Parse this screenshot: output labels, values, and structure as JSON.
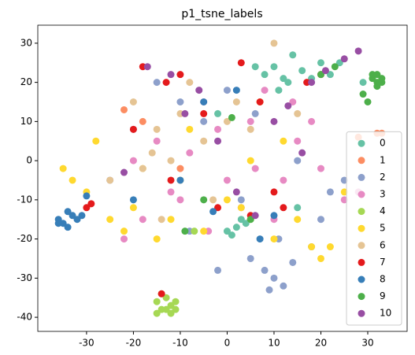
{
  "chart_data": {
    "type": "scatter",
    "title": "p1_tsne_labels",
    "xlim": [
      -40.4,
      38.4
    ],
    "ylim": [
      -43.6,
      34.6
    ],
    "xticks": [
      -30,
      -20,
      -10,
      0,
      10,
      20,
      30
    ],
    "yticks": [
      -40,
      -30,
      -20,
      -10,
      0,
      10,
      20,
      30
    ],
    "legend": "lower right",
    "series": [
      {
        "name": "0",
        "color": "#66c2a5",
        "x": [
          8,
          10,
          12,
          14,
          16,
          18,
          20,
          11,
          13,
          22,
          0,
          2,
          4,
          1,
          3,
          -2,
          6,
          15,
          24,
          29
        ],
        "values": [
          22,
          24,
          21,
          27,
          23,
          21,
          25,
          18,
          20,
          22,
          -18,
          -17,
          -16,
          -19,
          -15,
          12,
          24,
          -12,
          25,
          20
        ]
      },
      {
        "name": "1",
        "color": "#fc8d62",
        "x": [
          -22,
          -10,
          28,
          32,
          33,
          -18
        ],
        "values": [
          13,
          -2,
          6,
          7,
          7,
          10
        ]
      },
      {
        "name": "2",
        "color": "#8da0cb",
        "x": [
          -15,
          -10,
          -5,
          0,
          5,
          8,
          10,
          12,
          14,
          -20,
          -25,
          -2,
          18,
          20,
          22,
          25,
          3,
          9,
          11,
          6,
          -8,
          15
        ],
        "values": [
          20,
          15,
          10,
          18,
          -25,
          -28,
          -30,
          -32,
          -26,
          8,
          -5,
          -28,
          -22,
          -15,
          -8,
          -5,
          -10,
          -33,
          -20,
          12,
          -18,
          0
        ]
      },
      {
        "name": "3",
        "color": "#e78ac3",
        "x": [
          -20,
          -15,
          -10,
          -5,
          0,
          5,
          10,
          15,
          20,
          -18,
          -12,
          -8,
          -2,
          3,
          8,
          12,
          18,
          25,
          -22,
          6,
          14,
          -4,
          28
        ],
        "values": [
          0,
          5,
          -10,
          15,
          -5,
          10,
          -15,
          5,
          -2,
          -15,
          -8,
          2,
          8,
          -12,
          18,
          -5,
          10,
          -10,
          -20,
          -2,
          15,
          -18,
          -8
        ]
      },
      {
        "name": "4",
        "color": "#a6d854",
        "x": [
          -15,
          -14,
          -13,
          -12,
          -11,
          -14,
          -12,
          -13,
          -15,
          -11,
          -7,
          5
        ],
        "values": [
          -36,
          -38,
          -35,
          -37,
          -36,
          -34,
          -39,
          -38,
          -39,
          -38,
          -18,
          -15
        ]
      },
      {
        "name": "5",
        "color": "#ffd92f",
        "x": [
          -35,
          -30,
          -25,
          -20,
          -15,
          -10,
          -5,
          0,
          5,
          10,
          15,
          20,
          -28,
          -22,
          -18,
          -8,
          3,
          12,
          18,
          22,
          -33,
          -12,
          7,
          25
        ],
        "values": [
          -2,
          -8,
          -15,
          -12,
          -20,
          -5,
          -18,
          -10,
          0,
          -20,
          -15,
          -25,
          5,
          -18,
          -2,
          8,
          -12,
          5,
          -22,
          -22,
          -5,
          -15,
          15,
          -8
        ]
      },
      {
        "name": "6",
        "color": "#e5c494",
        "x": [
          -20,
          -15,
          -10,
          -5,
          0,
          -18,
          -12,
          -8,
          5,
          10,
          -25,
          -3,
          2,
          15,
          -14,
          -16
        ],
        "values": [
          15,
          8,
          12,
          5,
          10,
          -2,
          0,
          20,
          8,
          30,
          -5,
          -10,
          15,
          12,
          -15,
          2
        ]
      },
      {
        "name": "7",
        "color": "#e41a1c",
        "x": [
          -18,
          -13,
          -10,
          -5,
          -2,
          5,
          7,
          -20,
          -12,
          -30,
          -29,
          12,
          17,
          20,
          -14,
          3,
          10
        ],
        "values": [
          24,
          20,
          22,
          12,
          -12,
          -14,
          15,
          8,
          -5,
          -12,
          -11,
          -12,
          20,
          22,
          -34,
          25,
          -8
        ]
      },
      {
        "name": "8",
        "color": "#377eb8",
        "x": [
          -36,
          -35,
          -34,
          -33,
          -32,
          -36,
          -34,
          -31,
          -5,
          -3,
          2,
          7,
          -10,
          -20,
          10,
          -30
        ],
        "values": [
          -15,
          -16,
          -17,
          -14,
          -15,
          -16,
          -13,
          -14,
          15,
          -13,
          18,
          -20,
          -5,
          -10,
          -14,
          -9
        ]
      },
      {
        "name": "9",
        "color": "#4daf4a",
        "x": [
          31,
          32,
          33,
          32,
          31,
          33,
          32,
          30,
          29,
          -5,
          5,
          1,
          -9,
          20,
          23
        ],
        "values": [
          21,
          20,
          21,
          19,
          22,
          20,
          22,
          15,
          17,
          -10,
          -15,
          11,
          -18,
          22,
          24
        ]
      },
      {
        "name": "10",
        "color": "#984ea3",
        "x": [
          -17,
          -12,
          -6,
          -2,
          2,
          10,
          13,
          18,
          21,
          25,
          28,
          -22,
          -9,
          6,
          16
        ],
        "values": [
          24,
          22,
          18,
          5,
          -8,
          10,
          14,
          20,
          23,
          26,
          28,
          -3,
          12,
          -14,
          2
        ]
      }
    ]
  }
}
